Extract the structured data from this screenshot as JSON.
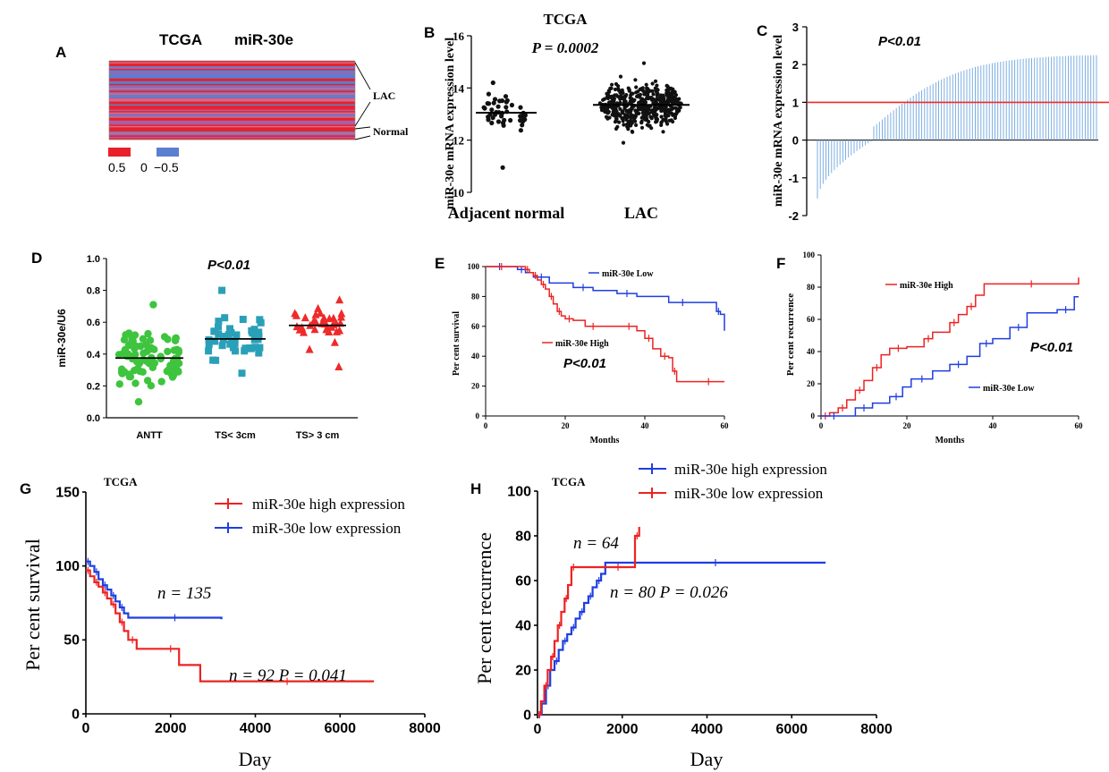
{
  "chart_data": [
    {
      "panel": "A",
      "type": "heatmap",
      "title_left": "TCGA",
      "title_right": "miR-30e",
      "row_labels": [
        "LAC",
        "Normal"
      ],
      "legend": [
        {
          "label": "0.5",
          "color": "#e8202a"
        },
        {
          "label": "0",
          "color": "#ffffff"
        },
        {
          "label": "−0.5",
          "color": "#5b7fd0"
        }
      ]
    },
    {
      "panel": "B",
      "type": "scatter",
      "title": "TCGA",
      "pvalue": "P = 0.0002",
      "ylabel": "miR-30e mRNA expression level",
      "categories": [
        "Adjacent normal",
        "LAC"
      ],
      "ylim": [
        10,
        16
      ],
      "yticks": [
        10,
        12,
        14,
        16
      ],
      "groups": [
        {
          "name": "Adjacent normal",
          "n": 46,
          "mean": 13.05,
          "min": 10.95,
          "max": 14.2
        },
        {
          "name": "LAC",
          "n": 460,
          "mean": 13.35,
          "min": 11.9,
          "max": 14.95
        }
      ]
    },
    {
      "panel": "C",
      "type": "bar",
      "pvalue": "P<0.01",
      "ylabel": "miR-30e mRNA expression level",
      "ylim": [
        -2,
        3
      ],
      "yticks": [
        -2,
        -1,
        0,
        1,
        2,
        3
      ],
      "reference_line": 1,
      "n_bars": 100,
      "min_value": -1.55,
      "max_value": 2.25
    },
    {
      "panel": "D",
      "type": "scatter",
      "pvalue": "P<0.01",
      "ylabel": "miR-30e/U6",
      "categories": [
        "ANTT",
        "TS< 3cm",
        "TS> 3 cm"
      ],
      "ylim": [
        0,
        1.0
      ],
      "yticks": [
        "0.0",
        "0.2",
        "0.4",
        "0.6",
        "0.8",
        "1.0"
      ],
      "groups": [
        {
          "name": "ANTT",
          "color": "#3ec43e",
          "marker": "circle",
          "n": 84,
          "mean": 0.375,
          "min": 0.1,
          "max": 0.71
        },
        {
          "name": "TS< 3cm",
          "color": "#2aa0b8",
          "marker": "square",
          "n": 46,
          "mean": 0.495,
          "min": 0.28,
          "max": 0.8
        },
        {
          "name": "TS> 3 cm",
          "color": "#ee2a2a",
          "marker": "triangle",
          "n": 38,
          "mean": 0.58,
          "min": 0.32,
          "max": 0.74
        }
      ]
    },
    {
      "panel": "E",
      "type": "line",
      "ylabel": "Per cent survival",
      "xlabel": "Months",
      "xlim": [
        0,
        60
      ],
      "ylim": [
        0,
        100
      ],
      "xticks": [
        0,
        20,
        40,
        60
      ],
      "yticks": [
        0,
        20,
        40,
        60,
        80,
        100
      ],
      "pvalue": "P<0.01",
      "series": [
        {
          "name": "miR-30e Low",
          "color": "#1f3ee0",
          "x": [
            0,
            7,
            8,
            10,
            12,
            16,
            22,
            27,
            33,
            38,
            46,
            53,
            58,
            59,
            60
          ],
          "y": [
            100,
            100,
            98,
            96,
            93,
            89,
            86,
            84,
            82,
            80,
            76,
            76,
            70,
            68,
            57
          ]
        },
        {
          "name": "miR-30e High",
          "color": "#ee2222",
          "x": [
            0,
            8,
            10,
            11,
            12,
            13,
            14,
            15,
            16,
            17,
            18,
            19,
            20,
            22,
            25,
            29,
            34,
            38,
            40,
            42,
            44,
            46,
            47,
            48,
            52,
            60
          ],
          "y": [
            100,
            100,
            98,
            96,
            94,
            91,
            88,
            85,
            80,
            75,
            70,
            67,
            65,
            64,
            60,
            60,
            60,
            57,
            52,
            45,
            40,
            39,
            30,
            23,
            23,
            23
          ]
        }
      ]
    },
    {
      "panel": "F",
      "type": "line",
      "ylabel": "Per cent recurrence",
      "xlabel": "Months",
      "xlim": [
        0,
        60
      ],
      "ylim": [
        0,
        100
      ],
      "xticks": [
        0,
        20,
        40,
        60
      ],
      "yticks": [
        0,
        20,
        40,
        60,
        80,
        100
      ],
      "pvalue": "P<0.01",
      "series": [
        {
          "name": "miR-30e High",
          "color": "#ee2222",
          "x": [
            0,
            2,
            4,
            6,
            8,
            10,
            12,
            14,
            16,
            20,
            24,
            26,
            30,
            32,
            34,
            36,
            38,
            60
          ],
          "y": [
            0,
            2,
            5,
            10,
            16,
            22,
            30,
            38,
            42,
            43,
            48,
            52,
            58,
            63,
            68,
            75,
            82,
            86
          ]
        },
        {
          "name": "miR-30e Low",
          "color": "#1f3ee0",
          "x": [
            0,
            6,
            8,
            12,
            16,
            19,
            21,
            26,
            30,
            34,
            37,
            40,
            44,
            48,
            55,
            59,
            60
          ],
          "y": [
            0,
            0,
            5,
            8,
            12,
            18,
            23,
            28,
            32,
            37,
            45,
            48,
            55,
            64,
            66,
            74,
            74
          ]
        }
      ]
    },
    {
      "panel": "G",
      "type": "line",
      "title": "TCGA",
      "ylabel": "Per cent survival",
      "xlabel": "Day",
      "xlim": [
        0,
        8000
      ],
      "ylim": [
        0,
        150
      ],
      "xticks": [
        0,
        2000,
        4000,
        6000,
        8000
      ],
      "yticks": [
        0,
        50,
        100,
        150
      ],
      "series": [
        {
          "name": "miR-30e high expression",
          "color": "#ee2222",
          "x": [
            0,
            100,
            200,
            300,
            400,
            500,
            600,
            700,
            800,
            900,
            1000,
            1200,
            1800,
            2200,
            2700,
            6800
          ],
          "y": [
            97,
            93,
            89,
            86,
            82,
            78,
            74,
            68,
            62,
            56,
            50,
            44,
            44,
            33,
            22,
            22
          ]
        },
        {
          "name": "miR-30e low expression",
          "color": "#1f3ee0",
          "x": [
            0,
            100,
            200,
            300,
            400,
            500,
            600,
            700,
            800,
            900,
            1000,
            3200
          ],
          "y": [
            103,
            100,
            96,
            91,
            87,
            84,
            80,
            76,
            72,
            68,
            65,
            64
          ]
        }
      ],
      "annotations": [
        "n = 135",
        "n = 92 P = 0.041"
      ]
    },
    {
      "panel": "H",
      "type": "line",
      "title": "TCGA",
      "ylabel": "Per cent recurrence",
      "xlabel": "Day",
      "xlim": [
        0,
        8000
      ],
      "ylim": [
        0,
        100
      ],
      "xticks": [
        0,
        2000,
        4000,
        6000,
        8000
      ],
      "yticks": [
        0,
        20,
        40,
        60,
        80,
        100
      ],
      "series": [
        {
          "name": "miR-30e high expression",
          "color": "#1f3ee0",
          "x": [
            0,
            100,
            200,
            300,
            400,
            500,
            600,
            700,
            800,
            900,
            1000,
            1100,
            1200,
            1300,
            1400,
            1500,
            1600,
            6800
          ],
          "y": [
            0,
            5,
            13,
            20,
            24,
            29,
            33,
            36,
            39,
            43,
            46,
            50,
            53,
            57,
            60,
            63,
            68,
            68
          ]
        },
        {
          "name": "miR-30e low expression",
          "color": "#ee2222",
          "x": [
            0,
            80,
            160,
            240,
            320,
            400,
            480,
            560,
            640,
            720,
            800,
            900,
            1600,
            2200,
            2300,
            2400
          ],
          "y": [
            0,
            6,
            13,
            20,
            26,
            33,
            40,
            46,
            52,
            58,
            66,
            66,
            66,
            66,
            80,
            84
          ]
        }
      ],
      "annotations": [
        "n = 64",
        "n = 80 P = 0.026"
      ]
    }
  ],
  "panel_letters": [
    "A",
    "B",
    "C",
    "D",
    "E",
    "F",
    "G",
    "H"
  ]
}
